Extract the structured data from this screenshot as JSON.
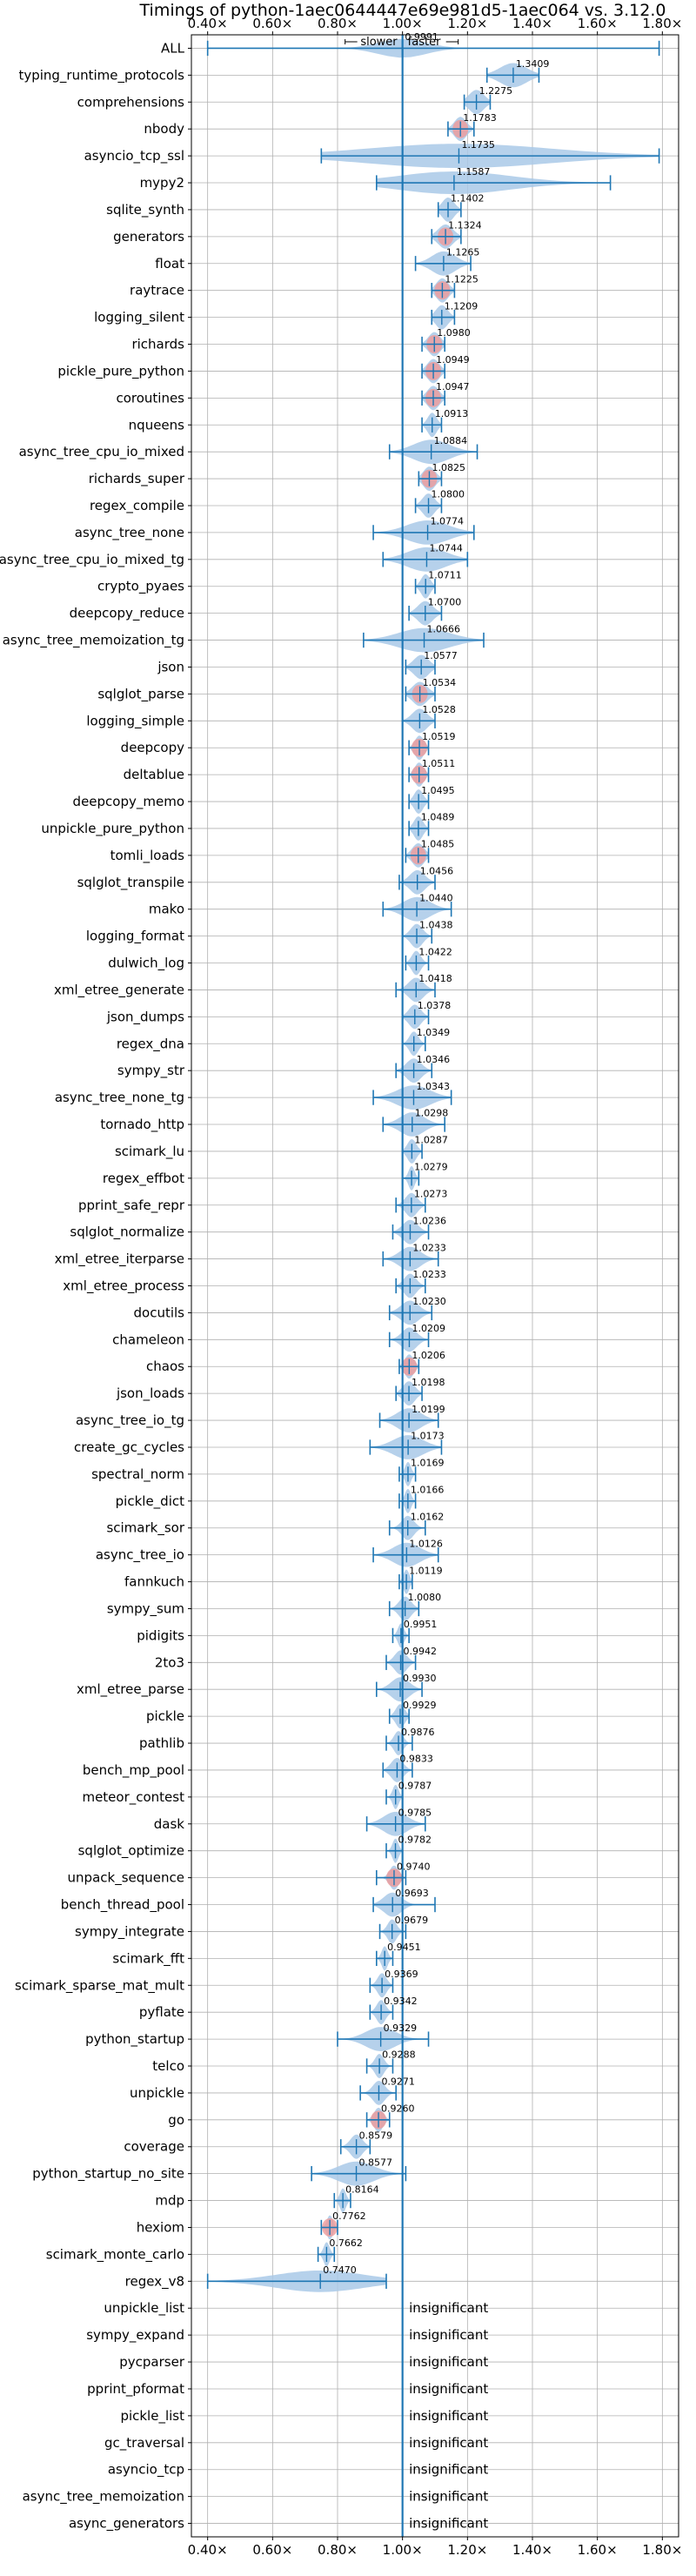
{
  "chart_data": {
    "type": "violin",
    "title": "Timings of python-1aec0644447e69e981d5-1aec064 vs. 3.12.0",
    "xlim": [
      0.35,
      1.85
    ],
    "xticks": [
      0.4,
      0.6,
      0.8,
      1.0,
      1.2,
      1.4,
      1.6,
      1.8
    ],
    "xtick_labels": [
      "0.40×",
      "0.60×",
      "0.80×",
      "1.00×",
      "1.20×",
      "1.40×",
      "1.60×",
      "1.80×"
    ],
    "reference_line": 1.0,
    "annotation_slower": "slower",
    "annotation_faster": "faster",
    "insignificant_label": "insignificant",
    "grid": true,
    "colors": {
      "violin": "#a9c9e8",
      "error_bar": "#1f77b4",
      "outlier": "#ef9a9a",
      "grid": "#b0b0b0"
    },
    "rows": [
      {
        "name": "ALL",
        "value": 0.9991,
        "value_label": "0.9991",
        "lo": 0.4,
        "hi": 1.79,
        "spread": 0.16,
        "width": 0.35
      },
      {
        "name": "typing_runtime_protocols",
        "value": 1.3409,
        "value_label": "1.3409",
        "lo": 1.26,
        "hi": 1.42,
        "spread": 0.09,
        "width": 0.45
      },
      {
        "name": "comprehensions",
        "value": 1.2275,
        "value_label": "1.2275",
        "lo": 1.19,
        "hi": 1.27,
        "spread": 0.05,
        "width": 0.45
      },
      {
        "name": "nbody",
        "value": 1.1783,
        "value_label": "1.1783",
        "lo": 1.14,
        "hi": 1.22,
        "spread": 0.04,
        "width": 0.45,
        "outlier": true
      },
      {
        "name": "asyncio_tcp_ssl",
        "value": 1.1735,
        "value_label": "1.1735",
        "lo": 0.75,
        "hi": 1.79,
        "spread": 0.62,
        "width": 0.45
      },
      {
        "name": "mypy2",
        "value": 1.1587,
        "value_label": "1.1587",
        "lo": 0.92,
        "hi": 1.64,
        "spread": 0.38,
        "width": 0.42
      },
      {
        "name": "sqlite_synth",
        "value": 1.1402,
        "value_label": "1.1402",
        "lo": 1.11,
        "hi": 1.18,
        "spread": 0.04,
        "width": 0.45
      },
      {
        "name": "generators",
        "value": 1.1324,
        "value_label": "1.1324",
        "lo": 1.09,
        "hi": 1.18,
        "spread": 0.05,
        "width": 0.45,
        "outlier": true
      },
      {
        "name": "float",
        "value": 1.1265,
        "value_label": "1.1265",
        "lo": 1.04,
        "hi": 1.21,
        "spread": 0.08,
        "width": 0.45
      },
      {
        "name": "raytrace",
        "value": 1.1225,
        "value_label": "1.1225",
        "lo": 1.09,
        "hi": 1.16,
        "spread": 0.04,
        "width": 0.45,
        "outlier": true
      },
      {
        "name": "logging_silent",
        "value": 1.1209,
        "value_label": "1.1209",
        "lo": 1.09,
        "hi": 1.16,
        "spread": 0.04,
        "width": 0.45
      },
      {
        "name": "richards",
        "value": 1.098,
        "value_label": "1.0980",
        "lo": 1.06,
        "hi": 1.13,
        "spread": 0.04,
        "width": 0.45,
        "outlier": true
      },
      {
        "name": "pickle_pure_python",
        "value": 1.0949,
        "value_label": "1.0949",
        "lo": 1.06,
        "hi": 1.13,
        "spread": 0.04,
        "width": 0.45,
        "outlier": true
      },
      {
        "name": "coroutines",
        "value": 1.0947,
        "value_label": "1.0947",
        "lo": 1.06,
        "hi": 1.13,
        "spread": 0.04,
        "width": 0.45,
        "outlier": true
      },
      {
        "name": "nqueens",
        "value": 1.0913,
        "value_label": "1.0913",
        "lo": 1.06,
        "hi": 1.12,
        "spread": 0.03,
        "width": 0.45
      },
      {
        "name": "async_tree_cpu_io_mixed",
        "value": 1.0884,
        "value_label": "1.0884",
        "lo": 0.96,
        "hi": 1.23,
        "spread": 0.12,
        "width": 0.45
      },
      {
        "name": "richards_super",
        "value": 1.0825,
        "value_label": "1.0825",
        "lo": 1.05,
        "hi": 1.12,
        "spread": 0.04,
        "width": 0.45,
        "outlier": true
      },
      {
        "name": "regex_compile",
        "value": 1.08,
        "value_label": "1.0800",
        "lo": 1.04,
        "hi": 1.12,
        "spread": 0.04,
        "width": 0.45
      },
      {
        "name": "async_tree_none",
        "value": 1.0774,
        "value_label": "1.0774",
        "lo": 0.91,
        "hi": 1.22,
        "spread": 0.14,
        "width": 0.45
      },
      {
        "name": "async_tree_cpu_io_mixed_tg",
        "value": 1.0744,
        "value_label": "1.0744",
        "lo": 0.94,
        "hi": 1.2,
        "spread": 0.13,
        "width": 0.45
      },
      {
        "name": "crypto_pyaes",
        "value": 1.0711,
        "value_label": "1.0711",
        "lo": 1.04,
        "hi": 1.1,
        "spread": 0.03,
        "width": 0.45
      },
      {
        "name": "deepcopy_reduce",
        "value": 1.07,
        "value_label": "1.0700",
        "lo": 1.02,
        "hi": 1.12,
        "spread": 0.05,
        "width": 0.45
      },
      {
        "name": "async_tree_memoization_tg",
        "value": 1.0666,
        "value_label": "1.0666",
        "lo": 0.88,
        "hi": 1.25,
        "spread": 0.17,
        "width": 0.45
      },
      {
        "name": "json",
        "value": 1.0577,
        "value_label": "1.0577",
        "lo": 1.01,
        "hi": 1.1,
        "spread": 0.05,
        "width": 0.45
      },
      {
        "name": "sqlglot_parse",
        "value": 1.0534,
        "value_label": "1.0534",
        "lo": 1.01,
        "hi": 1.1,
        "spread": 0.05,
        "width": 0.45,
        "outlier": true
      },
      {
        "name": "logging_simple",
        "value": 1.0528,
        "value_label": "1.0528",
        "lo": 1.0,
        "hi": 1.1,
        "spread": 0.05,
        "width": 0.45
      },
      {
        "name": "deepcopy",
        "value": 1.0519,
        "value_label": "1.0519",
        "lo": 1.02,
        "hi": 1.08,
        "spread": 0.03,
        "width": 0.45,
        "outlier": true
      },
      {
        "name": "deltablue",
        "value": 1.0511,
        "value_label": "1.0511",
        "lo": 1.02,
        "hi": 1.08,
        "spread": 0.03,
        "width": 0.45,
        "outlier": true
      },
      {
        "name": "deepcopy_memo",
        "value": 1.0495,
        "value_label": "1.0495",
        "lo": 1.02,
        "hi": 1.08,
        "spread": 0.03,
        "width": 0.45
      },
      {
        "name": "unpickle_pure_python",
        "value": 1.0489,
        "value_label": "1.0489",
        "lo": 1.02,
        "hi": 1.08,
        "spread": 0.03,
        "width": 0.45
      },
      {
        "name": "tomli_loads",
        "value": 1.0485,
        "value_label": "1.0485",
        "lo": 1.01,
        "hi": 1.08,
        "spread": 0.04,
        "width": 0.45,
        "outlier": true
      },
      {
        "name": "sqlglot_transpile",
        "value": 1.0456,
        "value_label": "1.0456",
        "lo": 0.99,
        "hi": 1.1,
        "spread": 0.05,
        "width": 0.45
      },
      {
        "name": "mako",
        "value": 1.044,
        "value_label": "1.0440",
        "lo": 0.94,
        "hi": 1.15,
        "spread": 0.09,
        "width": 0.45
      },
      {
        "name": "logging_format",
        "value": 1.0438,
        "value_label": "1.0438",
        "lo": 1.0,
        "hi": 1.09,
        "spread": 0.04,
        "width": 0.45
      },
      {
        "name": "dulwich_log",
        "value": 1.0422,
        "value_label": "1.0422",
        "lo": 1.01,
        "hi": 1.08,
        "spread": 0.03,
        "width": 0.45
      },
      {
        "name": "xml_etree_generate",
        "value": 1.0418,
        "value_label": "1.0418",
        "lo": 0.98,
        "hi": 1.1,
        "spread": 0.05,
        "width": 0.45
      },
      {
        "name": "json_dumps",
        "value": 1.0378,
        "value_label": "1.0378",
        "lo": 1.0,
        "hi": 1.08,
        "spread": 0.04,
        "width": 0.45
      },
      {
        "name": "regex_dna",
        "value": 1.0349,
        "value_label": "1.0349",
        "lo": 1.0,
        "hi": 1.07,
        "spread": 0.03,
        "width": 0.45
      },
      {
        "name": "sympy_str",
        "value": 1.0346,
        "value_label": "1.0346",
        "lo": 0.98,
        "hi": 1.09,
        "spread": 0.05,
        "width": 0.45
      },
      {
        "name": "async_tree_none_tg",
        "value": 1.0343,
        "value_label": "1.0343",
        "lo": 0.91,
        "hi": 1.15,
        "spread": 0.11,
        "width": 0.45
      },
      {
        "name": "tornado_http",
        "value": 1.0298,
        "value_label": "1.0298",
        "lo": 0.94,
        "hi": 1.13,
        "spread": 0.08,
        "width": 0.45
      },
      {
        "name": "scimark_lu",
        "value": 1.0287,
        "value_label": "1.0287",
        "lo": 1.0,
        "hi": 1.06,
        "spread": 0.03,
        "width": 0.45
      },
      {
        "name": "regex_effbot",
        "value": 1.0279,
        "value_label": "1.0279",
        "lo": 1.0,
        "hi": 1.05,
        "spread": 0.02,
        "width": 0.45
      },
      {
        "name": "pprint_safe_repr",
        "value": 1.0273,
        "value_label": "1.0273",
        "lo": 0.98,
        "hi": 1.07,
        "spread": 0.04,
        "width": 0.45
      },
      {
        "name": "sqlglot_normalize",
        "value": 1.0236,
        "value_label": "1.0236",
        "lo": 0.97,
        "hi": 1.08,
        "spread": 0.05,
        "width": 0.45
      },
      {
        "name": "xml_etree_iterparse",
        "value": 1.0233,
        "value_label": "1.0233",
        "lo": 0.94,
        "hi": 1.11,
        "spread": 0.07,
        "width": 0.45
      },
      {
        "name": "xml_etree_process",
        "value": 1.0233,
        "value_label": "1.0233",
        "lo": 0.98,
        "hi": 1.07,
        "spread": 0.04,
        "width": 0.45
      },
      {
        "name": "docutils",
        "value": 1.023,
        "value_label": "1.0230",
        "lo": 0.96,
        "hi": 1.09,
        "spread": 0.06,
        "width": 0.45
      },
      {
        "name": "chameleon",
        "value": 1.0209,
        "value_label": "1.0209",
        "lo": 0.96,
        "hi": 1.08,
        "spread": 0.05,
        "width": 0.45
      },
      {
        "name": "chaos",
        "value": 1.0206,
        "value_label": "1.0206",
        "lo": 0.99,
        "hi": 1.05,
        "spread": 0.03,
        "width": 0.45,
        "outlier": true
      },
      {
        "name": "json_loads",
        "value": 1.0198,
        "value_label": "1.0198",
        "lo": 0.98,
        "hi": 1.06,
        "spread": 0.04,
        "width": 0.45
      },
      {
        "name": "async_tree_io_tg",
        "value": 1.0199,
        "value_label": "1.0199",
        "lo": 0.93,
        "hi": 1.11,
        "spread": 0.08,
        "width": 0.45
      },
      {
        "name": "create_gc_cycles",
        "value": 1.0173,
        "value_label": "1.0173",
        "lo": 0.9,
        "hi": 1.12,
        "spread": 0.1,
        "width": 0.45
      },
      {
        "name": "spectral_norm",
        "value": 1.0169,
        "value_label": "1.0169",
        "lo": 0.99,
        "hi": 1.04,
        "spread": 0.02,
        "width": 0.45
      },
      {
        "name": "pickle_dict",
        "value": 1.0166,
        "value_label": "1.0166",
        "lo": 0.99,
        "hi": 1.04,
        "spread": 0.02,
        "width": 0.45
      },
      {
        "name": "scimark_sor",
        "value": 1.0162,
        "value_label": "1.0162",
        "lo": 0.96,
        "hi": 1.07,
        "spread": 0.04,
        "width": 0.45
      },
      {
        "name": "async_tree_io",
        "value": 1.0126,
        "value_label": "1.0126",
        "lo": 0.91,
        "hi": 1.11,
        "spread": 0.09,
        "width": 0.45
      },
      {
        "name": "fannkuch",
        "value": 1.0119,
        "value_label": "1.0119",
        "lo": 0.99,
        "hi": 1.03,
        "spread": 0.02,
        "width": 0.45
      },
      {
        "name": "sympy_sum",
        "value": 1.008,
        "value_label": "1.0080",
        "lo": 0.96,
        "hi": 1.05,
        "spread": 0.04,
        "width": 0.45
      },
      {
        "name": "pidigits",
        "value": 0.9951,
        "value_label": "0.9951",
        "lo": 0.97,
        "hi": 1.02,
        "spread": 0.02,
        "width": 0.45
      },
      {
        "name": "2to3",
        "value": 0.9942,
        "value_label": "0.9942",
        "lo": 0.95,
        "hi": 1.04,
        "spread": 0.04,
        "width": 0.45
      },
      {
        "name": "xml_etree_parse",
        "value": 0.993,
        "value_label": "0.9930",
        "lo": 0.92,
        "hi": 1.06,
        "spread": 0.06,
        "width": 0.45
      },
      {
        "name": "pickle",
        "value": 0.9929,
        "value_label": "0.9929",
        "lo": 0.96,
        "hi": 1.02,
        "spread": 0.03,
        "width": 0.45
      },
      {
        "name": "pathlib",
        "value": 0.9876,
        "value_label": "0.9876",
        "lo": 0.95,
        "hi": 1.03,
        "spread": 0.03,
        "width": 0.45
      },
      {
        "name": "bench_mp_pool",
        "value": 0.9833,
        "value_label": "0.9833",
        "lo": 0.94,
        "hi": 1.03,
        "spread": 0.04,
        "width": 0.45
      },
      {
        "name": "meteor_contest",
        "value": 0.9787,
        "value_label": "0.9787",
        "lo": 0.95,
        "hi": 1.0,
        "spread": 0.02,
        "width": 0.45
      },
      {
        "name": "dask",
        "value": 0.9785,
        "value_label": "0.9785",
        "lo": 0.89,
        "hi": 1.07,
        "spread": 0.08,
        "width": 0.45
      },
      {
        "name": "sqlglot_optimize",
        "value": 0.9782,
        "value_label": "0.9782",
        "lo": 0.95,
        "hi": 1.0,
        "spread": 0.02,
        "width": 0.45
      },
      {
        "name": "unpack_sequence",
        "value": 0.974,
        "value_label": "0.9740",
        "lo": 0.92,
        "hi": 1.01,
        "spread": 0.03,
        "width": 0.45,
        "outlier": true
      },
      {
        "name": "bench_thread_pool",
        "value": 0.9693,
        "value_label": "0.9693",
        "lo": 0.91,
        "hi": 1.1,
        "spread": 0.06,
        "width": 0.45
      },
      {
        "name": "sympy_integrate",
        "value": 0.9679,
        "value_label": "0.9679",
        "lo": 0.93,
        "hi": 1.01,
        "spread": 0.03,
        "width": 0.45
      },
      {
        "name": "scimark_fft",
        "value": 0.9451,
        "value_label": "0.9451",
        "lo": 0.92,
        "hi": 0.97,
        "spread": 0.02,
        "width": 0.45
      },
      {
        "name": "scimark_sparse_mat_mult",
        "value": 0.9369,
        "value_label": "0.9369",
        "lo": 0.9,
        "hi": 0.97,
        "spread": 0.03,
        "width": 0.45
      },
      {
        "name": "pyflate",
        "value": 0.9342,
        "value_label": "0.9342",
        "lo": 0.9,
        "hi": 0.97,
        "spread": 0.03,
        "width": 0.45
      },
      {
        "name": "python_startup",
        "value": 0.9329,
        "value_label": "0.9329",
        "lo": 0.8,
        "hi": 1.08,
        "spread": 0.1,
        "width": 0.45
      },
      {
        "name": "telco",
        "value": 0.9288,
        "value_label": "0.9288",
        "lo": 0.89,
        "hi": 0.97,
        "spread": 0.03,
        "width": 0.45
      },
      {
        "name": "unpickle",
        "value": 0.9271,
        "value_label": "0.9271",
        "lo": 0.87,
        "hi": 0.98,
        "spread": 0.04,
        "width": 0.45
      },
      {
        "name": "go",
        "value": 0.926,
        "value_label": "0.9260",
        "lo": 0.89,
        "hi": 0.96,
        "spread": 0.03,
        "width": 0.45,
        "outlier": true
      },
      {
        "name": "coverage",
        "value": 0.8579,
        "value_label": "0.8579",
        "lo": 0.81,
        "hi": 0.9,
        "spread": 0.04,
        "width": 0.45
      },
      {
        "name": "python_startup_no_site",
        "value": 0.8577,
        "value_label": "0.8577",
        "lo": 0.72,
        "hi": 1.01,
        "spread": 0.12,
        "width": 0.45
      },
      {
        "name": "mdp",
        "value": 0.8164,
        "value_label": "0.8164",
        "lo": 0.79,
        "hi": 0.84,
        "spread": 0.02,
        "width": 0.45
      },
      {
        "name": "hexiom",
        "value": 0.7762,
        "value_label": "0.7762",
        "lo": 0.75,
        "hi": 0.8,
        "spread": 0.02,
        "width": 0.45,
        "outlier": true
      },
      {
        "name": "scimark_monte_carlo",
        "value": 0.7662,
        "value_label": "0.7662",
        "lo": 0.74,
        "hi": 0.79,
        "spread": 0.02,
        "width": 0.45
      },
      {
        "name": "regex_v8",
        "value": 0.747,
        "value_label": "0.7470",
        "lo": 0.4,
        "hi": 0.95,
        "spread": 0.3,
        "width": 0.4
      },
      {
        "name": "unpickle_list",
        "insignificant": true
      },
      {
        "name": "sympy_expand",
        "insignificant": true
      },
      {
        "name": "pycparser",
        "insignificant": true
      },
      {
        "name": "pprint_pformat",
        "insignificant": true
      },
      {
        "name": "pickle_list",
        "insignificant": true
      },
      {
        "name": "gc_traversal",
        "insignificant": true
      },
      {
        "name": "asyncio_tcp",
        "insignificant": true
      },
      {
        "name": "async_tree_memoization",
        "insignificant": true
      },
      {
        "name": "async_generators",
        "insignificant": true
      }
    ]
  }
}
